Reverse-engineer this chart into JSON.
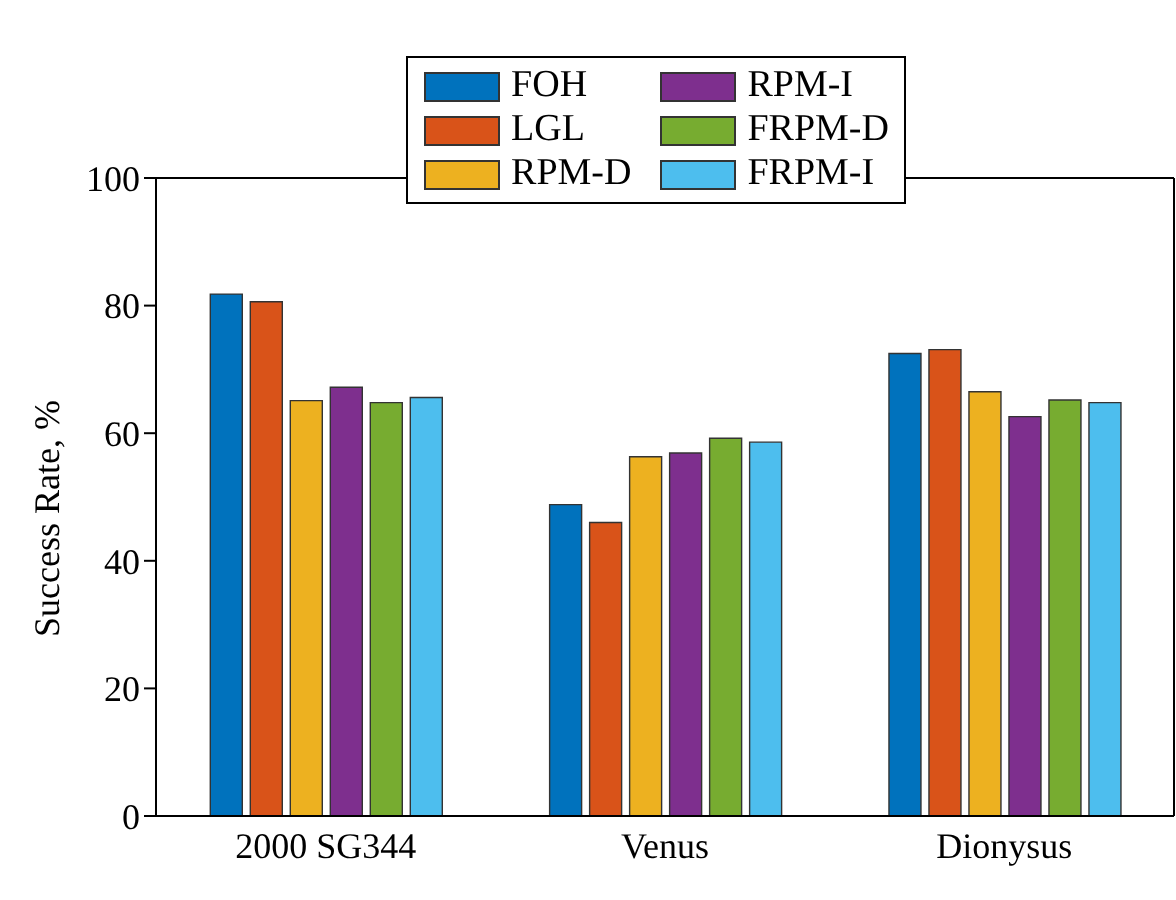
{
  "chart_data": {
    "type": "bar",
    "ylabel": "Success Rate, %",
    "categories": [
      "2000 SG344",
      "Venus",
      "Dionysus"
    ],
    "series": [
      {
        "name": "FOH",
        "color": "#0072bd",
        "values": [
          81.8,
          48.8,
          72.5
        ]
      },
      {
        "name": "LGL",
        "color": "#d95319",
        "values": [
          80.6,
          46.0,
          73.1
        ]
      },
      {
        "name": "RPM-D",
        "color": "#edb120",
        "values": [
          65.1,
          56.3,
          66.5
        ]
      },
      {
        "name": "RPM-I",
        "color": "#7e2f8e",
        "values": [
          67.2,
          56.9,
          62.6
        ]
      },
      {
        "name": "FRPM-D",
        "color": "#77ac30",
        "values": [
          64.8,
          59.2,
          65.2
        ]
      },
      {
        "name": "FRPM-I",
        "color": "#4dbeee",
        "values": [
          65.6,
          58.6,
          64.8
        ]
      }
    ],
    "ylim": [
      0,
      100
    ],
    "yticks": [
      0,
      20,
      40,
      60,
      80,
      100
    ],
    "legend": "top"
  }
}
